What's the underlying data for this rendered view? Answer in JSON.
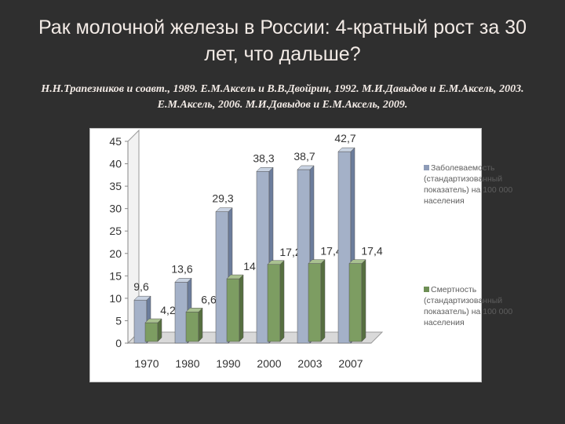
{
  "title": "Рак молочной железы в России: 4-кратный рост за 30 лет, что дальше?",
  "subtitle": "Н.Н.Трапезников и соавт., 1989. Е.М.Аксель и В.В.Двойрин, 1992. М.И.Давыдов и Е.М.Аксель, 2003. Е.М.Аксель, 2006. М.И.Давыдов и Е.М.Аксель, 2009.",
  "colors": {
    "background": "#2f2f2f",
    "text": "#f3ebe6",
    "incidence_front": "#a4b1c8",
    "incidence_side": "#6c7d9c",
    "incidence_top": "#c9d3e2",
    "mortality_front": "#7d9d62",
    "mortality_side": "#566f40",
    "mortality_top": "#a9c190"
  },
  "chart_data": {
    "type": "bar",
    "categories": [
      "1970",
      "1980",
      "1990",
      "2000",
      "2003",
      "2007"
    ],
    "series": [
      {
        "name": "Заболеваемость (стандартизованный показатель) на 100 000 населения",
        "values": [
          9.6,
          13.6,
          29.3,
          38.3,
          38.7,
          42.7
        ],
        "labels": [
          "9,6",
          "13,6",
          "29,3",
          "38,3",
          "38,7",
          "42,7"
        ]
      },
      {
        "name": "Смертность (стандартизованный показатель) на 100 000 населения",
        "values": [
          4.2,
          6.6,
          14,
          17.2,
          17.4,
          17.4
        ],
        "labels": [
          "4,2",
          "6,6",
          "14",
          "17,2",
          "17,4",
          "17,4"
        ]
      }
    ],
    "yticks": [
      "0",
      "5",
      "10",
      "15",
      "20",
      "25",
      "30",
      "35",
      "40",
      "45"
    ],
    "ylim": [
      0,
      45
    ],
    "legend_position": "right",
    "legend": {
      "incidence": [
        "Заболеваемость",
        "(стандартизованный",
        "показатель) на 100 000",
        "населения"
      ],
      "mortality": [
        "Смертность",
        "(стандартизованный",
        "показатель) на 100 000",
        "населения"
      ]
    }
  }
}
